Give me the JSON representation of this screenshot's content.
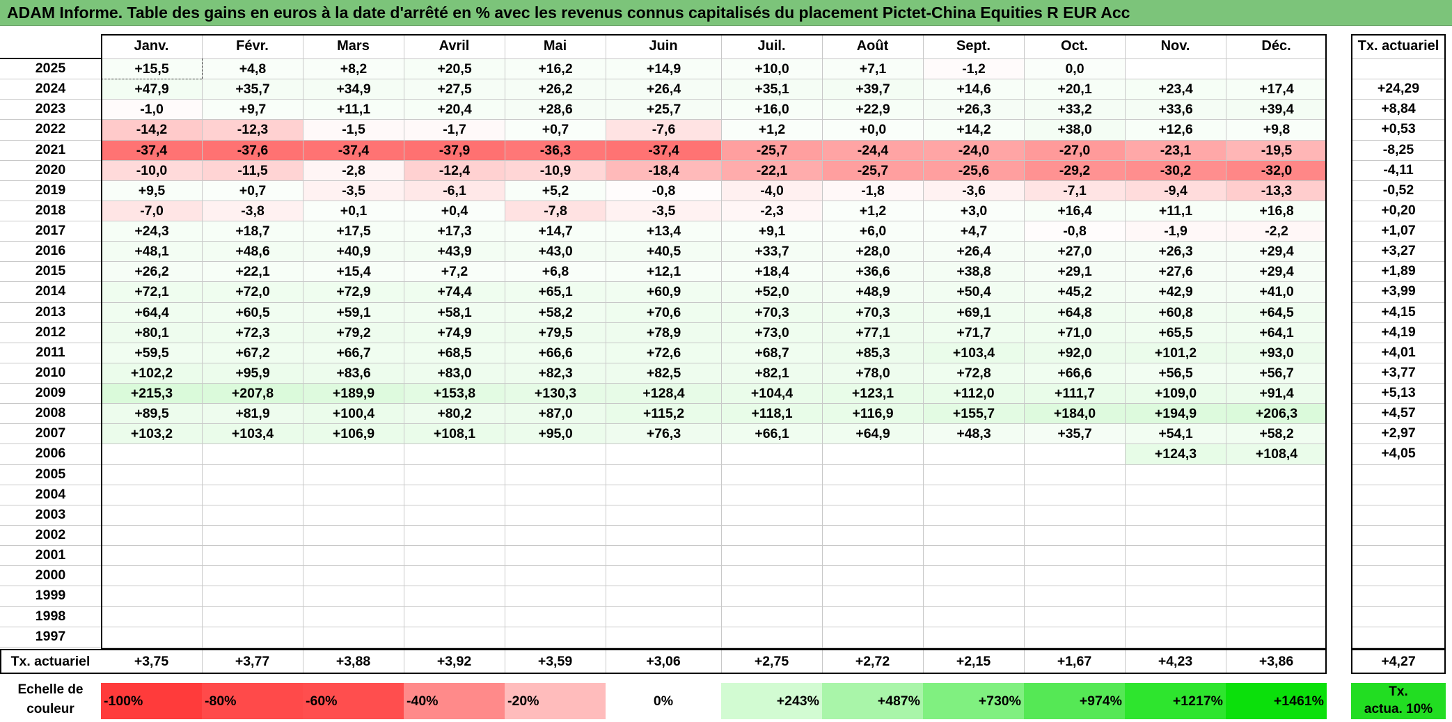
{
  "title": "ADAM Informe. Table des gains en euros à la date d'arrêté en % avec les revenus connus capitalisés du placement Pictet-China Equities R EUR Acc",
  "months": [
    "Janv.",
    "Févr.",
    "Mars",
    "Avril",
    "Mai",
    "Juin",
    "Juil.",
    "Août",
    "Sept.",
    "Oct.",
    "Nov.",
    "Déc."
  ],
  "annual_header": "Tx. actuariel",
  "rows": [
    {
      "year": "2025",
      "values": [
        "+15,5",
        "+4,8",
        "+8,2",
        "+20,5",
        "+16,2",
        "+14,9",
        "+10,0",
        "+7,1",
        "-1,2",
        "0,0",
        "",
        ""
      ],
      "annual": ""
    },
    {
      "year": "2024",
      "values": [
        "+47,9",
        "+35,7",
        "+34,9",
        "+27,5",
        "+26,2",
        "+26,4",
        "+35,1",
        "+39,7",
        "+14,6",
        "+20,1",
        "+23,4",
        "+17,4"
      ],
      "annual": "+24,29"
    },
    {
      "year": "2023",
      "values": [
        "-1,0",
        "+9,7",
        "+11,1",
        "+20,4",
        "+28,6",
        "+25,7",
        "+16,0",
        "+22,9",
        "+26,3",
        "+33,2",
        "+33,6",
        "+39,4"
      ],
      "annual": "+8,84"
    },
    {
      "year": "2022",
      "values": [
        "-14,2",
        "-12,3",
        "-1,5",
        "-1,7",
        "+0,7",
        "-7,6",
        "+1,2",
        "+0,0",
        "+14,2",
        "+38,0",
        "+12,6",
        "+9,8"
      ],
      "annual": "+0,53"
    },
    {
      "year": "2021",
      "values": [
        "-37,4",
        "-37,6",
        "-37,4",
        "-37,9",
        "-36,3",
        "-37,4",
        "-25,7",
        "-24,4",
        "-24,0",
        "-27,0",
        "-23,1",
        "-19,5"
      ],
      "annual": "-8,25"
    },
    {
      "year": "2020",
      "values": [
        "-10,0",
        "-11,5",
        "-2,8",
        "-12,4",
        "-10,9",
        "-18,4",
        "-22,1",
        "-25,7",
        "-25,6",
        "-29,2",
        "-30,2",
        "-32,0"
      ],
      "annual": "-4,11"
    },
    {
      "year": "2019",
      "values": [
        "+9,5",
        "+0,7",
        "-3,5",
        "-6,1",
        "+5,2",
        "-0,8",
        "-4,0",
        "-1,8",
        "-3,6",
        "-7,1",
        "-9,4",
        "-13,3"
      ],
      "annual": "-0,52"
    },
    {
      "year": "2018",
      "values": [
        "-7,0",
        "-3,8",
        "+0,1",
        "+0,4",
        "-7,8",
        "-3,5",
        "-2,3",
        "+1,2",
        "+3,0",
        "+16,4",
        "+11,1",
        "+16,8"
      ],
      "annual": "+0,20"
    },
    {
      "year": "2017",
      "values": [
        "+24,3",
        "+18,7",
        "+17,5",
        "+17,3",
        "+14,7",
        "+13,4",
        "+9,1",
        "+6,0",
        "+4,7",
        "-0,8",
        "-1,9",
        "-2,2"
      ],
      "annual": "+1,07"
    },
    {
      "year": "2016",
      "values": [
        "+48,1",
        "+48,6",
        "+40,9",
        "+43,9",
        "+43,0",
        "+40,5",
        "+33,7",
        "+28,0",
        "+26,4",
        "+27,0",
        "+26,3",
        "+29,4"
      ],
      "annual": "+3,27"
    },
    {
      "year": "2015",
      "values": [
        "+26,2",
        "+22,1",
        "+15,4",
        "+7,2",
        "+6,8",
        "+12,1",
        "+18,4",
        "+36,6",
        "+38,8",
        "+29,1",
        "+27,6",
        "+29,4"
      ],
      "annual": "+1,89"
    },
    {
      "year": "2014",
      "values": [
        "+72,1",
        "+72,0",
        "+72,9",
        "+74,4",
        "+65,1",
        "+60,9",
        "+52,0",
        "+48,9",
        "+50,4",
        "+45,2",
        "+42,9",
        "+41,0"
      ],
      "annual": "+3,99"
    },
    {
      "year": "2013",
      "values": [
        "+64,4",
        "+60,5",
        "+59,1",
        "+58,1",
        "+58,2",
        "+70,6",
        "+70,3",
        "+70,3",
        "+69,1",
        "+64,8",
        "+60,8",
        "+64,5"
      ],
      "annual": "+4,15"
    },
    {
      "year": "2012",
      "values": [
        "+80,1",
        "+72,3",
        "+79,2",
        "+74,9",
        "+79,5",
        "+78,9",
        "+73,0",
        "+77,1",
        "+71,7",
        "+71,0",
        "+65,5",
        "+64,1"
      ],
      "annual": "+4,19"
    },
    {
      "year": "2011",
      "values": [
        "+59,5",
        "+67,2",
        "+66,7",
        "+68,5",
        "+66,6",
        "+72,6",
        "+68,7",
        "+85,3",
        "+103,4",
        "+92,0",
        "+101,2",
        "+93,0"
      ],
      "annual": "+4,01"
    },
    {
      "year": "2010",
      "values": [
        "+102,2",
        "+95,9",
        "+83,6",
        "+83,0",
        "+82,3",
        "+82,5",
        "+82,1",
        "+78,0",
        "+72,8",
        "+66,6",
        "+56,5",
        "+56,7"
      ],
      "annual": "+3,77"
    },
    {
      "year": "2009",
      "values": [
        "+215,3",
        "+207,8",
        "+189,9",
        "+153,8",
        "+130,3",
        "+128,4",
        "+104,4",
        "+123,1",
        "+112,0",
        "+111,7",
        "+109,0",
        "+91,4"
      ],
      "annual": "+5,13"
    },
    {
      "year": "2008",
      "values": [
        "+89,5",
        "+81,9",
        "+100,4",
        "+80,2",
        "+87,0",
        "+115,2",
        "+118,1",
        "+116,9",
        "+155,7",
        "+184,0",
        "+194,9",
        "+206,3"
      ],
      "annual": "+4,57"
    },
    {
      "year": "2007",
      "values": [
        "+103,2",
        "+103,4",
        "+106,9",
        "+108,1",
        "+95,0",
        "+76,3",
        "+66,1",
        "+64,9",
        "+48,3",
        "+35,7",
        "+54,1",
        "+58,2"
      ],
      "annual": "+2,97"
    },
    {
      "year": "2006",
      "values": [
        "",
        "",
        "",
        "",
        "",
        "",
        "",
        "",
        "",
        "",
        "+124,3",
        "+108,4"
      ],
      "annual": "+4,05"
    },
    {
      "year": "2005",
      "values": [
        "",
        "",
        "",
        "",
        "",
        "",
        "",
        "",
        "",
        "",
        "",
        ""
      ],
      "annual": ""
    },
    {
      "year": "2004",
      "values": [
        "",
        "",
        "",
        "",
        "",
        "",
        "",
        "",
        "",
        "",
        "",
        ""
      ],
      "annual": ""
    },
    {
      "year": "2003",
      "values": [
        "",
        "",
        "",
        "",
        "",
        "",
        "",
        "",
        "",
        "",
        "",
        ""
      ],
      "annual": ""
    },
    {
      "year": "2002",
      "values": [
        "",
        "",
        "",
        "",
        "",
        "",
        "",
        "",
        "",
        "",
        "",
        ""
      ],
      "annual": ""
    },
    {
      "year": "2001",
      "values": [
        "",
        "",
        "",
        "",
        "",
        "",
        "",
        "",
        "",
        "",
        "",
        ""
      ],
      "annual": ""
    },
    {
      "year": "2000",
      "values": [
        "",
        "",
        "",
        "",
        "",
        "",
        "",
        "",
        "",
        "",
        "",
        ""
      ],
      "annual": ""
    },
    {
      "year": "1999",
      "values": [
        "",
        "",
        "",
        "",
        "",
        "",
        "",
        "",
        "",
        "",
        "",
        ""
      ],
      "annual": ""
    },
    {
      "year": "1998",
      "values": [
        "",
        "",
        "",
        "",
        "",
        "",
        "",
        "",
        "",
        "",
        "",
        ""
      ],
      "annual": ""
    },
    {
      "year": "1997",
      "values": [
        "",
        "",
        "",
        "",
        "",
        "",
        "",
        "",
        "",
        "",
        "",
        ""
      ],
      "annual": ""
    }
  ],
  "footer": {
    "label": "Tx. actuariel",
    "values": [
      "+3,75",
      "+3,77",
      "+3,88",
      "+3,92",
      "+3,59",
      "+3,06",
      "+2,75",
      "+2,72",
      "+2,15",
      "+1,67",
      "+4,23",
      "+3,86"
    ],
    "annual": "+4,27"
  },
  "color_scale": {
    "label_line1": "Echelle de",
    "label_line2": "couleur",
    "items": [
      {
        "text": "-100%",
        "color": "#ff3b3b",
        "align": "left"
      },
      {
        "text": "-80%",
        "color": "#ff4a4a",
        "align": "left"
      },
      {
        "text": "-60%",
        "color": "#ff4e4e",
        "align": "left"
      },
      {
        "text": "-40%",
        "color": "#ff8a8a",
        "align": "left"
      },
      {
        "text": "-20%",
        "color": "#ffbcbc",
        "align": "left"
      },
      {
        "text": "0%",
        "color": "#ffffff",
        "align": "center"
      },
      {
        "text": "+243%",
        "color": "#d2fbd2",
        "align": "right"
      },
      {
        "text": "+487%",
        "color": "#a9f5a9",
        "align": "right"
      },
      {
        "text": "+730%",
        "color": "#80f080",
        "align": "right"
      },
      {
        "text": "+974%",
        "color": "#55e855",
        "align": "right"
      },
      {
        "text": "+1217%",
        "color": "#2ee52e",
        "align": "right"
      },
      {
        "text": "+1461%",
        "color": "#0be00b",
        "align": "right"
      }
    ],
    "annual_line1": "Tx.",
    "annual_line2": "actua. 10%",
    "annual_color": "#22dd22"
  }
}
